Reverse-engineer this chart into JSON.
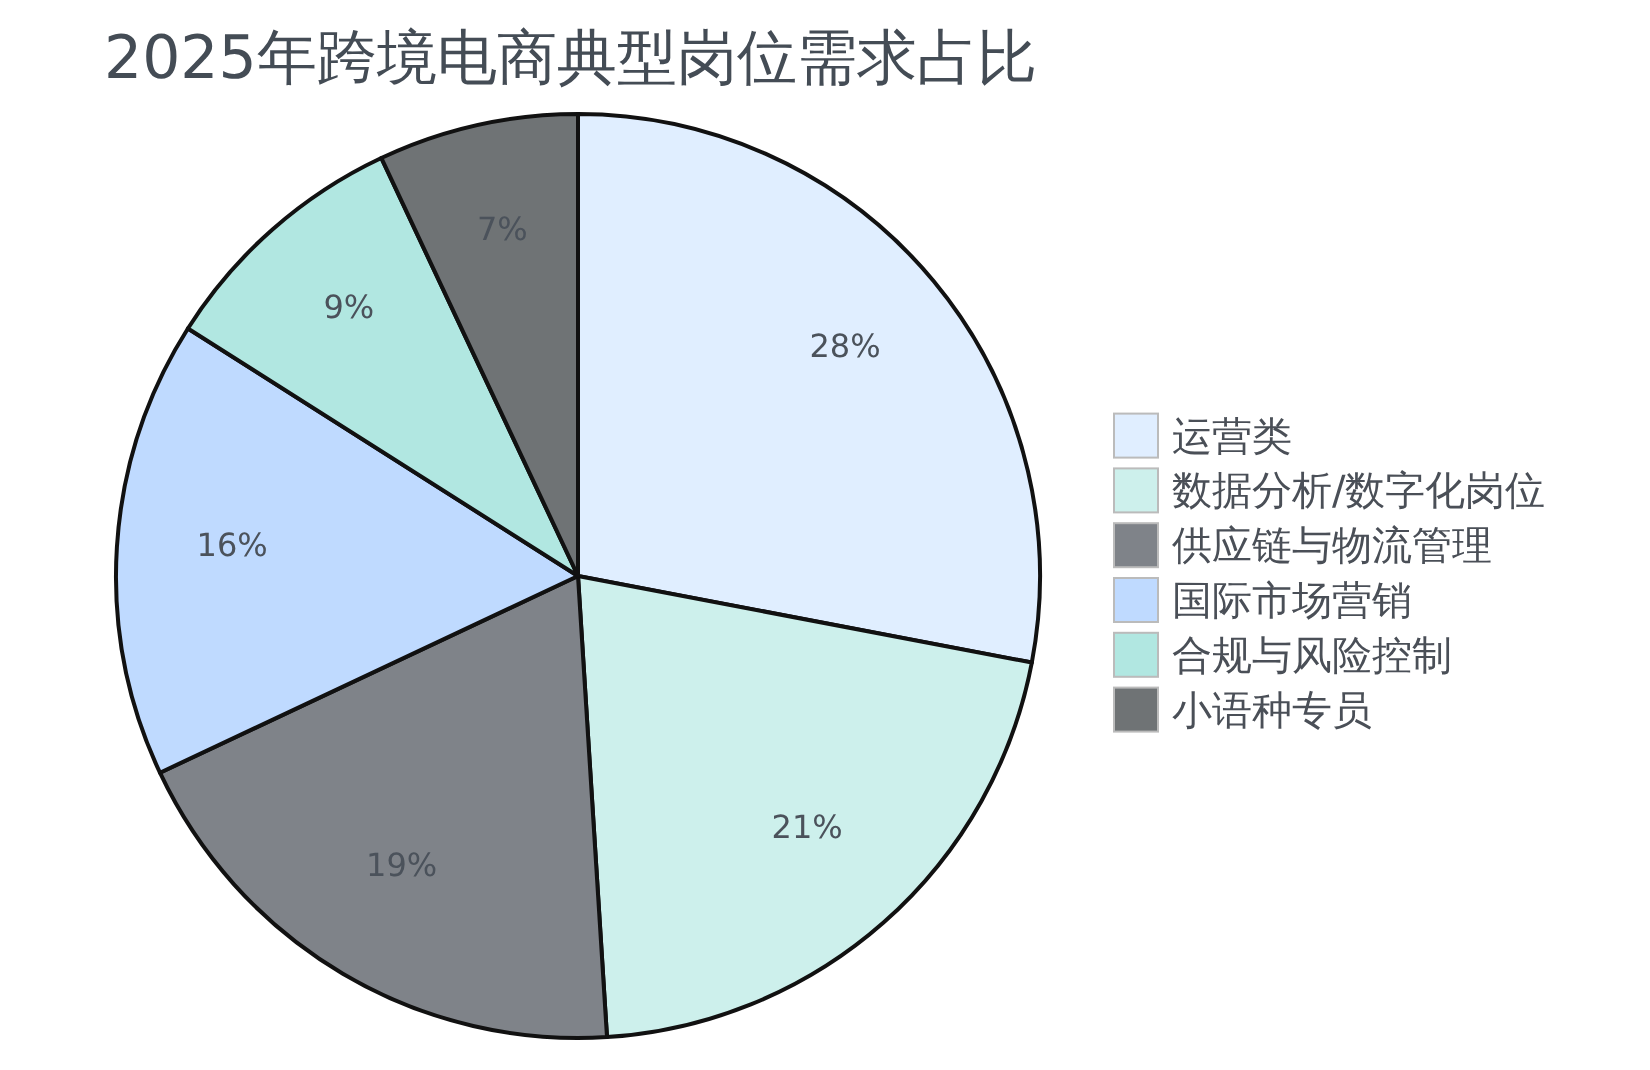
{
  "chart_data": {
    "type": "pie",
    "title": "2025年跨境电商典型岗位需求占比",
    "categories": [
      "运营类",
      "数据分析/数字化岗位",
      "供应链与物流管理",
      "国际市场营销",
      "合规与风险控制",
      "小语种专员"
    ],
    "values": [
      28,
      21,
      19,
      16,
      9,
      7
    ],
    "value_labels": [
      "28%",
      "21%",
      "19%",
      "16%",
      "9%",
      "7%"
    ],
    "colors": [
      "#e0eeff",
      "#cdf0ec",
      "#7f8389",
      "#bfdaff",
      "#b1e7e1",
      "#6f7375"
    ],
    "legend": "right"
  }
}
